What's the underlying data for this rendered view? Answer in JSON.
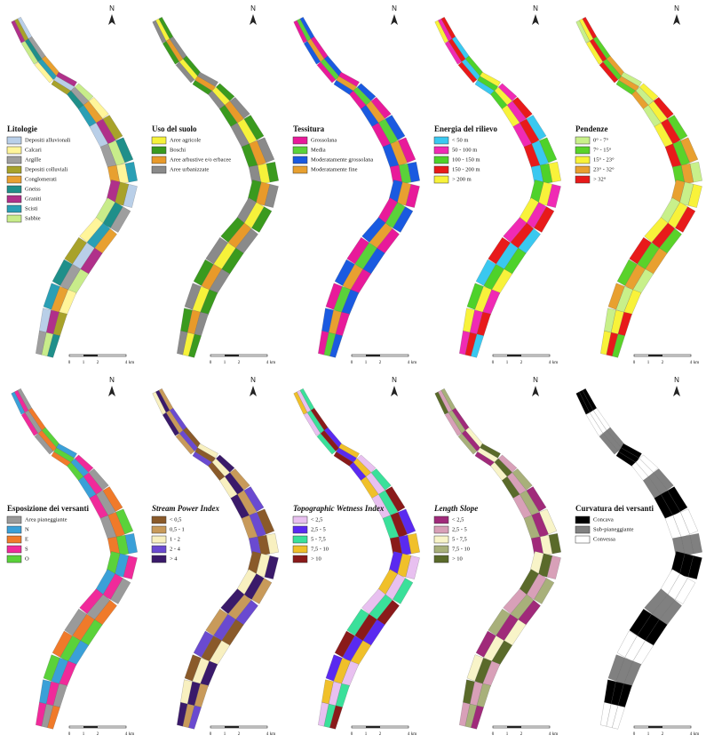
{
  "north": "N",
  "scale": [
    "0",
    "1",
    "2",
    "4",
    "km"
  ],
  "panels": [
    {
      "title": "Litologie",
      "items": [
        {
          "label": "Depositi alluvionali",
          "color": "#b9cfe8"
        },
        {
          "label": "Calcari",
          "color": "#fff59a"
        },
        {
          "label": "Argille",
          "color": "#9e9e9e"
        },
        {
          "label": "Depositi colluviali",
          "color": "#a8a22a"
        },
        {
          "label": "Conglomerati",
          "color": "#e8a030"
        },
        {
          "label": "Gneiss",
          "color": "#1f8f8a"
        },
        {
          "label": "Graniti",
          "color": "#b0308a"
        },
        {
          "label": "Scisti",
          "color": "#2a9fb5"
        },
        {
          "label": "Sabbie",
          "color": "#c8ec8a"
        }
      ]
    },
    {
      "title": "Uso del suolo",
      "items": [
        {
          "label": "Aree agricole",
          "color": "#f6f23a"
        },
        {
          "label": "Boschi",
          "color": "#3a9a1e"
        },
        {
          "label": "Aree arbustive e/o erbacee",
          "color": "#e89a2a"
        },
        {
          "label": "Aree urbanizzate",
          "color": "#8a8a8a"
        }
      ]
    },
    {
      "title": "Tessitura",
      "items": [
        {
          "label": "Grossolana",
          "color": "#e81a9a"
        },
        {
          "label": "Media",
          "color": "#5ad23a"
        },
        {
          "label": "Moderatamente grossolana",
          "color": "#1a5ae0"
        },
        {
          "label": "Moderatamente fine",
          "color": "#e8a030"
        }
      ]
    },
    {
      "title": "Energia del rilievo",
      "items": [
        {
          "label": "< 50 m",
          "color": "#3ac8f0"
        },
        {
          "label": "50 - 100 m",
          "color": "#f02ab4"
        },
        {
          "label": "100 - 150 m",
          "color": "#4ed22a"
        },
        {
          "label": "150 - 200 m",
          "color": "#e81a1a"
        },
        {
          "label": "> 200 m",
          "color": "#f8f23a"
        }
      ]
    },
    {
      "title": "Pendenze",
      "items": [
        {
          "label": "0° - 7°",
          "color": "#c8f08a"
        },
        {
          "label": "7° - 15°",
          "color": "#5ad22a"
        },
        {
          "label": "15° - 23°",
          "color": "#f8f23a"
        },
        {
          "label": "23° - 32°",
          "color": "#e8a030"
        },
        {
          "label": "> 32°",
          "color": "#e81a1a"
        }
      ]
    },
    {
      "title": "Esposizione dei versanti",
      "items": [
        {
          "label": "Area pianeggiante",
          "color": "#9a9a9a"
        },
        {
          "label": "N",
          "color": "#3aa0d8"
        },
        {
          "label": "E",
          "color": "#f07a2a"
        },
        {
          "label": "S",
          "color": "#f02a9a"
        },
        {
          "label": "O",
          "color": "#5ad23a"
        }
      ]
    },
    {
      "title": "Stream Power Index",
      "items": [
        {
          "label": "< 0,5",
          "color": "#8a5a2a"
        },
        {
          "label": "0,5 - 1",
          "color": "#c89a5a"
        },
        {
          "label": "1 - 2",
          "color": "#f8f0c0"
        },
        {
          "label": "2 - 4",
          "color": "#6a4ad0"
        },
        {
          "label": "> 4",
          "color": "#3a1a6a"
        }
      ]
    },
    {
      "title": "Topographic Wetness Index",
      "items": [
        {
          "label": "< 2,5",
          "color": "#e8c0f0"
        },
        {
          "label": "2,5 - 5",
          "color": "#5a2af0"
        },
        {
          "label": "5 - 7,5",
          "color": "#3ae09a"
        },
        {
          "label": "7,5 - 10",
          "color": "#f0c02a"
        },
        {
          "label": "> 10",
          "color": "#8a1a1a"
        }
      ]
    },
    {
      "title": "Length Slope",
      "items": [
        {
          "label": "< 2,5",
          "color": "#a02a7a"
        },
        {
          "label": "2,5 - 5",
          "color": "#d8a0b8"
        },
        {
          "label": "5 - 7,5",
          "color": "#f8f4c8"
        },
        {
          "label": "7,5 - 10",
          "color": "#a8b07a"
        },
        {
          "label": "> 10",
          "color": "#5a6a2a"
        }
      ]
    },
    {
      "title": "Curvatura dei versanti",
      "items": [
        {
          "label": "Concava",
          "color": "#000000"
        },
        {
          "label": "Sub-pianeggiante",
          "color": "#808080"
        },
        {
          "label": "Convessa",
          "color": "#ffffff"
        }
      ]
    }
  ]
}
